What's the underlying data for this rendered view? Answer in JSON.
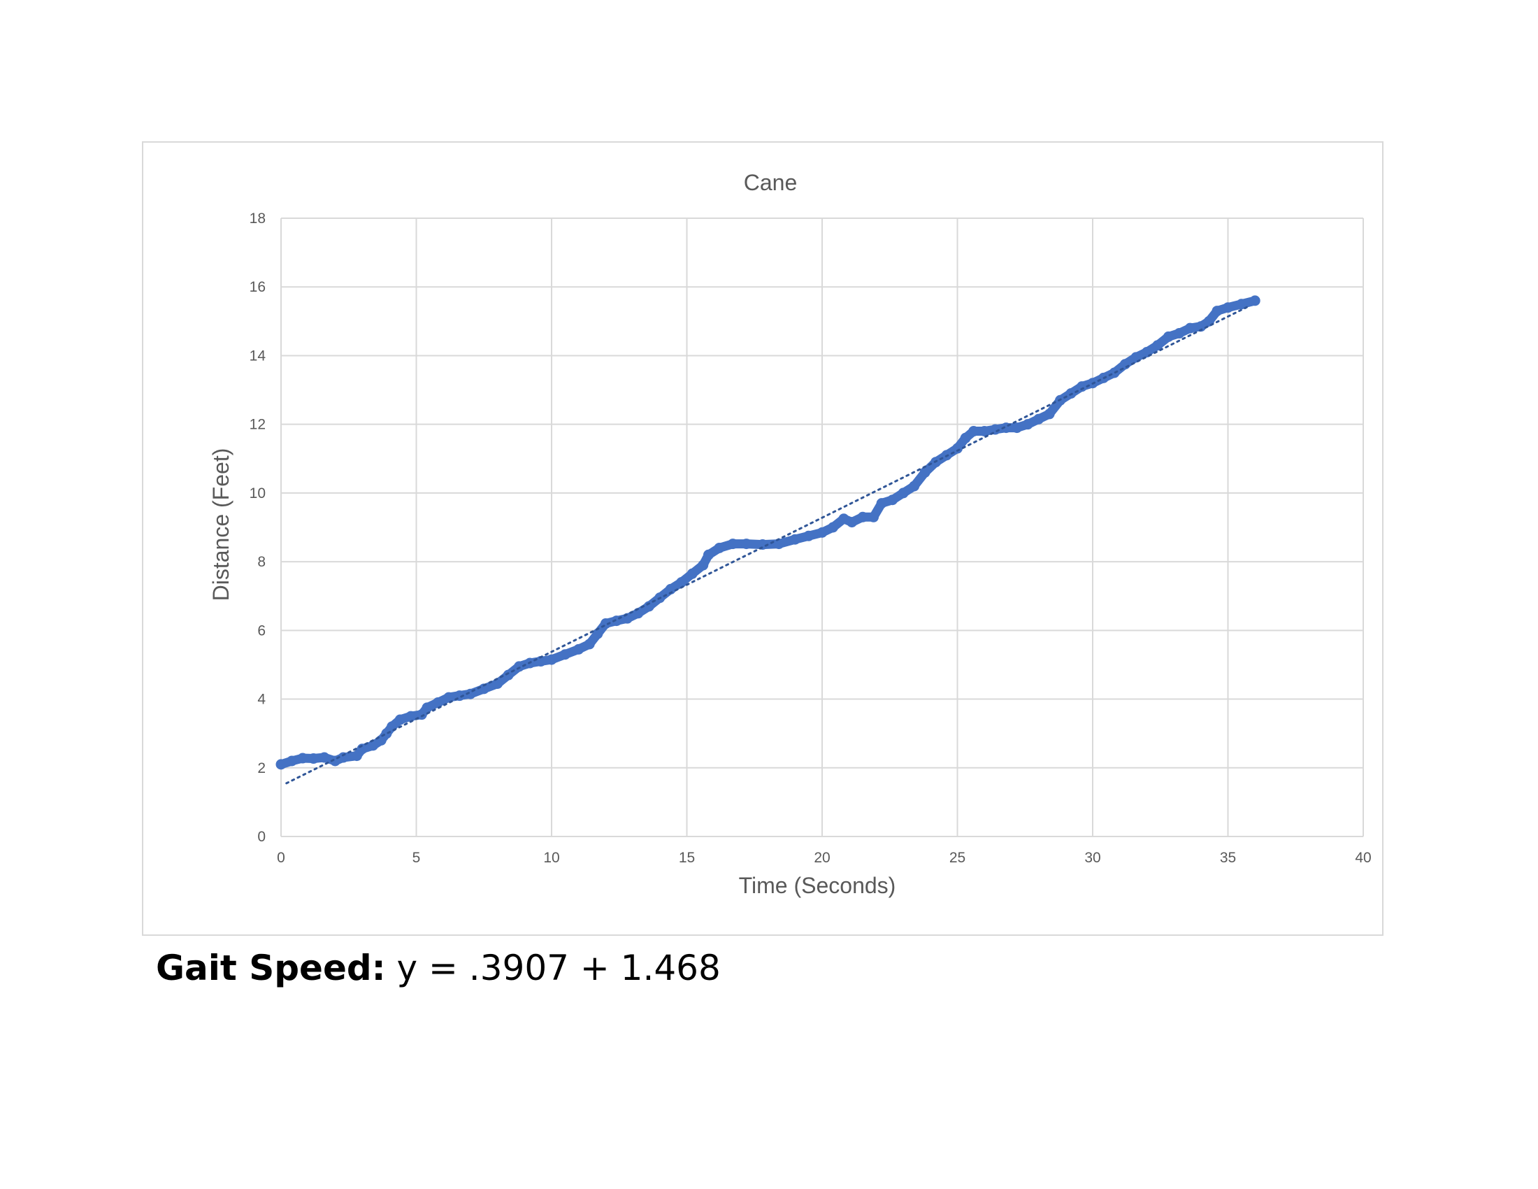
{
  "chart_data": {
    "type": "scatter",
    "title": "Cane",
    "xlabel": "Time (Seconds)",
    "ylabel": "Distance  (Feet)",
    "xlim": [
      0,
      40
    ],
    "ylim": [
      0,
      18
    ],
    "xticks": [
      "0",
      "5",
      "10",
      "15",
      "20",
      "25",
      "30",
      "35",
      "40"
    ],
    "yticks": [
      "0",
      "2",
      "4",
      "6",
      "8",
      "10",
      "12",
      "14",
      "16",
      "18"
    ],
    "grid": true,
    "legend": "none",
    "colors": {
      "series": "#4472c4",
      "trendline": "#2f5597",
      "grid": "#d9d9d9",
      "axis_text": "#595959"
    },
    "series": [
      {
        "values": [
          [
            0.0,
            2.1
          ],
          [
            0.4,
            2.2
          ],
          [
            0.8,
            2.28
          ],
          [
            1.2,
            2.27
          ],
          [
            1.6,
            2.3
          ],
          [
            2.0,
            2.2
          ],
          [
            2.3,
            2.3
          ],
          [
            2.8,
            2.35
          ],
          [
            3.0,
            2.55
          ],
          [
            3.4,
            2.65
          ],
          [
            3.7,
            2.8
          ],
          [
            3.9,
            3.0
          ],
          [
            4.1,
            3.2
          ],
          [
            4.4,
            3.4
          ],
          [
            4.8,
            3.5
          ],
          [
            5.2,
            3.55
          ],
          [
            5.4,
            3.75
          ],
          [
            5.8,
            3.9
          ],
          [
            6.2,
            4.05
          ],
          [
            6.6,
            4.1
          ],
          [
            7.0,
            4.15
          ],
          [
            7.5,
            4.3
          ],
          [
            8.0,
            4.45
          ],
          [
            8.4,
            4.7
          ],
          [
            8.8,
            4.95
          ],
          [
            9.2,
            5.05
          ],
          [
            9.6,
            5.1
          ],
          [
            10.0,
            5.15
          ],
          [
            10.5,
            5.3
          ],
          [
            11.0,
            5.45
          ],
          [
            11.4,
            5.6
          ],
          [
            11.7,
            5.9
          ],
          [
            12.0,
            6.2
          ],
          [
            12.4,
            6.28
          ],
          [
            12.8,
            6.35
          ],
          [
            13.2,
            6.5
          ],
          [
            13.6,
            6.7
          ],
          [
            14.0,
            6.95
          ],
          [
            14.4,
            7.2
          ],
          [
            14.8,
            7.4
          ],
          [
            15.2,
            7.65
          ],
          [
            15.6,
            7.9
          ],
          [
            15.8,
            8.2
          ],
          [
            16.2,
            8.4
          ],
          [
            16.7,
            8.52
          ],
          [
            17.2,
            8.52
          ],
          [
            17.8,
            8.5
          ],
          [
            18.4,
            8.52
          ],
          [
            19.0,
            8.65
          ],
          [
            19.5,
            8.75
          ],
          [
            20.0,
            8.85
          ],
          [
            20.4,
            9.0
          ],
          [
            20.8,
            9.25
          ],
          [
            21.1,
            9.15
          ],
          [
            21.5,
            9.3
          ],
          [
            21.9,
            9.3
          ],
          [
            22.2,
            9.7
          ],
          [
            22.6,
            9.8
          ],
          [
            23.0,
            10.0
          ],
          [
            23.4,
            10.2
          ],
          [
            23.8,
            10.6
          ],
          [
            24.2,
            10.9
          ],
          [
            24.6,
            11.1
          ],
          [
            25.0,
            11.3
          ],
          [
            25.3,
            11.6
          ],
          [
            25.6,
            11.8
          ],
          [
            26.0,
            11.8
          ],
          [
            26.4,
            11.85
          ],
          [
            26.8,
            11.9
          ],
          [
            27.2,
            11.9
          ],
          [
            27.6,
            12.0
          ],
          [
            28.0,
            12.15
          ],
          [
            28.4,
            12.3
          ],
          [
            28.8,
            12.7
          ],
          [
            29.2,
            12.9
          ],
          [
            29.6,
            13.1
          ],
          [
            30.0,
            13.2
          ],
          [
            30.4,
            13.35
          ],
          [
            30.8,
            13.5
          ],
          [
            31.2,
            13.75
          ],
          [
            31.6,
            13.95
          ],
          [
            32.0,
            14.1
          ],
          [
            32.4,
            14.3
          ],
          [
            32.8,
            14.55
          ],
          [
            33.2,
            14.65
          ],
          [
            33.6,
            14.8
          ],
          [
            34.0,
            14.85
          ],
          [
            34.3,
            15.0
          ],
          [
            34.6,
            15.3
          ],
          [
            35.0,
            15.4
          ],
          [
            35.5,
            15.5
          ],
          [
            36.0,
            15.6
          ]
        ]
      }
    ],
    "trendline": {
      "type": "linear",
      "style": "dotted",
      "x_range": [
        0.2,
        35.8
      ],
      "y_range": [
        1.55,
        15.45
      ]
    }
  },
  "caption": {
    "lead": "Gait Speed:",
    "equation": " y = .3907 + 1.468"
  }
}
